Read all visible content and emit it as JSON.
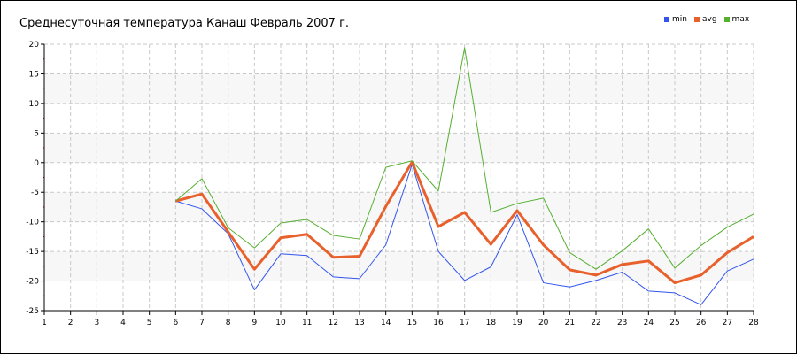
{
  "chart_data": {
    "type": "line",
    "title": "Среднесуточная температура Канаш  Февраль 2007 г.",
    "x": [
      1,
      2,
      3,
      4,
      5,
      6,
      7,
      8,
      9,
      10,
      11,
      12,
      13,
      14,
      15,
      16,
      17,
      18,
      19,
      20,
      21,
      22,
      23,
      24,
      25,
      26,
      27,
      28
    ],
    "xlim": [
      1,
      28
    ],
    "ylim": [
      -25,
      20
    ],
    "yticks": [
      20,
      15,
      10,
      5,
      0,
      -5,
      -10,
      -15,
      -20,
      -25
    ],
    "grid": true,
    "legend_position": "top-right",
    "series": [
      {
        "name": "min",
        "color": "#3355ee",
        "values": [
          null,
          null,
          null,
          null,
          null,
          -6.5,
          -7.8,
          -12,
          -21.5,
          -15.4,
          -15.7,
          -19.3,
          -19.6,
          -13.9,
          -0.3,
          -15,
          -19.9,
          -17.6,
          -8.8,
          -20.3,
          -21,
          -19.9,
          -18.5,
          -21.7,
          -22,
          -24,
          -18.3,
          -16.3
        ]
      },
      {
        "name": "avg",
        "color": "#e8602c",
        "values": [
          null,
          null,
          null,
          null,
          null,
          -6.5,
          -5.3,
          -11.7,
          -18,
          -12.7,
          -12.1,
          -16,
          -15.8,
          -7.4,
          0.1,
          -10.8,
          -8.4,
          -13.8,
          -8.1,
          -13.9,
          -18.1,
          -19,
          -17.2,
          -16.6,
          -20.3,
          -19,
          -15.2,
          -12.5
        ]
      },
      {
        "name": "max",
        "color": "#55b030",
        "values": [
          null,
          null,
          null,
          null,
          null,
          -6.5,
          -2.7,
          -11,
          -14.4,
          -10.2,
          -9.6,
          -12.3,
          -12.9,
          -0.8,
          0.3,
          -4.8,
          19.4,
          -8.4,
          -6.9,
          -6,
          -15.2,
          -18,
          -14.9,
          -11.2,
          -17.8,
          -14,
          -10.9,
          -8.7
        ]
      }
    ]
  }
}
